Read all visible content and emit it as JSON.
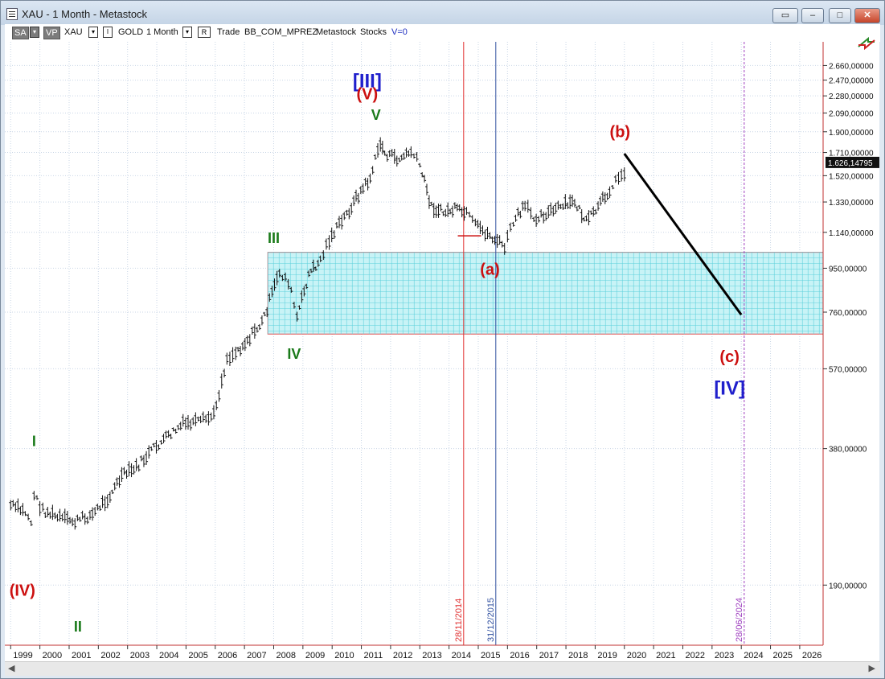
{
  "window": {
    "title": "XAU - 1 Month - Metastock"
  },
  "toolbar": {
    "sa_label": "SA",
    "vp_label": "VP",
    "symbol": "XAU",
    "instrument": "GOLD",
    "period": "1 Month",
    "r_label": "R",
    "trade_label": "Trade",
    "account": "BB_COM_MPREZ",
    "source": "Metastock",
    "type": "Stocks",
    "volume": "V=0"
  },
  "chart_data": {
    "type": "line",
    "title": "",
    "xlabel": "",
    "ylabel": "",
    "y_scale": "log",
    "ylim": [
      140,
      3000
    ],
    "xlim": [
      1998.8,
      2026.8
    ],
    "y_ticks": [
      "2.660,00000",
      "2.470,00000",
      "2.280,00000",
      "2.090,00000",
      "1.900,00000",
      "1.710,00000",
      "1.520,00000",
      "1.330,00000",
      "1.140,00000",
      "950,00000",
      "760,00000",
      "570,00000",
      "380,00000",
      "190,00000"
    ],
    "y_tick_values": [
      2660,
      2470,
      2280,
      2090,
      1900,
      1710,
      1520,
      1330,
      1140,
      950,
      760,
      570,
      380,
      190
    ],
    "x_ticks": [
      "1999",
      "2000",
      "2001",
      "2002",
      "2003",
      "2004",
      "2005",
      "2006",
      "2007",
      "2008",
      "2009",
      "2010",
      "2011",
      "2012",
      "2013",
      "2014",
      "2015",
      "2016",
      "2017",
      "2018",
      "2019",
      "2020",
      "2021",
      "2022",
      "2023",
      "2024",
      "2025",
      "2026"
    ],
    "last_price": "1.626,14795",
    "series": [
      {
        "x": [
          1999.0,
          1999.5,
          1999.7,
          1999.8,
          2000.1,
          2000.6,
          2001.2,
          2001.8,
          2002.4,
          2002.8,
          2003.3,
          2003.9,
          2004.4,
          2004.9,
          2005.5,
          2005.95,
          2006.4,
          2006.7,
          2007.1,
          2007.6,
          2008.2,
          2008.5,
          2008.8,
          2009.2,
          2009.6,
          2009.9,
          2010.5,
          2010.9,
          2011.3,
          2011.65,
          2011.8,
          2012.3,
          2012.7,
          2013.0,
          2013.4,
          2013.8,
          2014.2,
          2014.6,
          2014.9,
          2015.4,
          2015.9,
          2016.2,
          2016.6,
          2016.9,
          2017.4,
          2017.9,
          2018.3,
          2018.7,
          2019.1,
          2019.5,
          2019.8,
          2020.0,
          2020.1
        ],
        "values": [
          285,
          275,
          262,
          300,
          278,
          268,
          262,
          272,
          300,
          330,
          345,
          380,
          405,
          430,
          435,
          450,
          600,
          620,
          660,
          720,
          930,
          890,
          740,
          920,
          990,
          1100,
          1250,
          1380,
          1500,
          1800,
          1700,
          1650,
          1720,
          1600,
          1300,
          1260,
          1280,
          1250,
          1180,
          1120,
          1060,
          1200,
          1300,
          1230,
          1260,
          1300,
          1330,
          1200,
          1290,
          1420,
          1500,
          1560,
          1640
        ]
      }
    ],
    "projection": {
      "from": {
        "x": 2020.0,
        "y": 1700
      },
      "to": {
        "x": 2024.0,
        "y": 750
      }
    },
    "zone": {
      "x_from": 2007.8,
      "x_to": 2026.8,
      "y_from": 680,
      "y_to": 1030
    },
    "vertical_lines": [
      {
        "x": 2014.5,
        "label": "28/11/2014",
        "color": "#e03030",
        "style": "solid"
      },
      {
        "x": 2015.6,
        "label": "31/12/2015",
        "color": "#3050a0",
        "style": "solid"
      },
      {
        "x": 2024.1,
        "label": "28/06/2024",
        "color": "#a040c0",
        "style": "dashed"
      }
    ],
    "annotations": [
      {
        "text": "[III]",
        "x": 2011.2,
        "y": 2380,
        "color": "#1f1fcc",
        "size": 24
      },
      {
        "text": "(V)",
        "x": 2011.2,
        "y": 2240,
        "color": "#cc1010",
        "size": 20
      },
      {
        "text": "V",
        "x": 2011.5,
        "y": 2020,
        "color": "#1a7a1a",
        "size": 18
      },
      {
        "text": "(b)",
        "x": 2019.85,
        "y": 1850,
        "color": "#cc1010",
        "size": 20
      },
      {
        "text": "III",
        "x": 2008.0,
        "y": 1080,
        "color": "#1a7a1a",
        "size": 18
      },
      {
        "text": "(a)",
        "x": 2015.4,
        "y": 920,
        "color": "#cc1010",
        "size": 20
      },
      {
        "text": "IV",
        "x": 2008.7,
        "y": 600,
        "color": "#1a7a1a",
        "size": 18
      },
      {
        "text": "(c)",
        "x": 2023.6,
        "y": 590,
        "color": "#cc1010",
        "size": 20
      },
      {
        "text": "[IV]",
        "x": 2023.6,
        "y": 500,
        "color": "#1f1fcc",
        "size": 24
      },
      {
        "text": "I",
        "x": 1999.8,
        "y": 385,
        "color": "#1a7a1a",
        "size": 18
      },
      {
        "text": "(IV)",
        "x": 1999.4,
        "y": 180,
        "color": "#cc1010",
        "size": 20
      },
      {
        "text": "II",
        "x": 2001.3,
        "y": 150,
        "color": "#1a7a1a",
        "size": 18
      }
    ],
    "grid": true
  }
}
